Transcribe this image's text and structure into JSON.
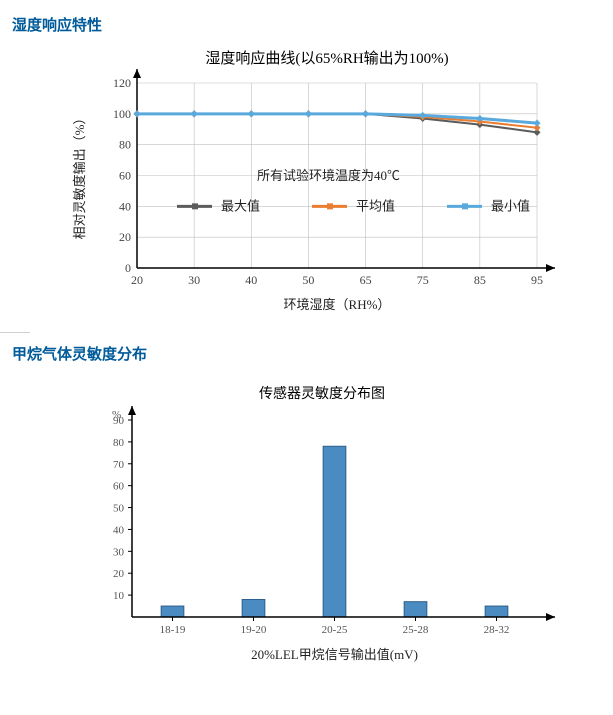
{
  "section1": {
    "heading": "湿度响应特性",
    "chart": {
      "type": "line",
      "title": "湿度响应曲线(以65%RH输出为100%)",
      "title_fontsize": 15,
      "ylabel": "相对灵敏度输出（%）",
      "xlabel": "环境湿度（RH%）",
      "axis_label_fontsize": 13,
      "tick_fontsize": 12,
      "note": "所有试验环境温度为40℃",
      "note_fontsize": 13,
      "x_ticks": [
        "20",
        "30",
        "40",
        "50",
        "65",
        "75",
        "85",
        "95"
      ],
      "y_ticks": [
        "0",
        "20",
        "40",
        "60",
        "80",
        "100",
        "120"
      ],
      "ylim": [
        0,
        120
      ],
      "grid_color": "#bfbfbf",
      "axis_color": "#000000",
      "background_color": "#ffffff",
      "legend_items": [
        {
          "label": "最大值",
          "color": "#5b5b5b"
        },
        {
          "label": "平均值",
          "color": "#e97d31"
        },
        {
          "label": "最小值",
          "color": "#5aa9dd"
        }
      ],
      "series": {
        "max": {
          "color": "#5b5b5b",
          "width": 2,
          "values": [
            100,
            100,
            100,
            100,
            100,
            97,
            93,
            88
          ]
        },
        "avg": {
          "color": "#e97d31",
          "width": 2,
          "values": [
            100,
            100,
            100,
            100,
            100,
            98,
            95,
            91
          ]
        },
        "min": {
          "color": "#5aa9dd",
          "width": 3,
          "values": [
            100,
            100,
            100,
            100,
            100,
            99,
            97,
            94
          ]
        }
      }
    }
  },
  "section2": {
    "heading": "甲烷气体灵敏度分布",
    "chart": {
      "type": "bar",
      "title": "传感器灵敏度分布图",
      "title_fontsize": 14,
      "ylabel": "%",
      "xlabel": "20%LEL甲烷信号输出值(mV)",
      "axis_label_fontsize": 13,
      "tick_fontsize": 11,
      "categories": [
        "18-19",
        "19-20",
        "20-25",
        "25-28",
        "28-32"
      ],
      "values": [
        5,
        8,
        78,
        7,
        5
      ],
      "y_ticks": [
        "10",
        "20",
        "30",
        "40",
        "50",
        "60",
        "70",
        "80",
        "90"
      ],
      "ylim": [
        0,
        90
      ],
      "bar_color": "#4a8bc2",
      "bar_border": "#2d5f8b",
      "bar_width": 0.28,
      "axis_color": "#000000",
      "tick_color": "#888888",
      "background_color": "#ffffff"
    }
  }
}
